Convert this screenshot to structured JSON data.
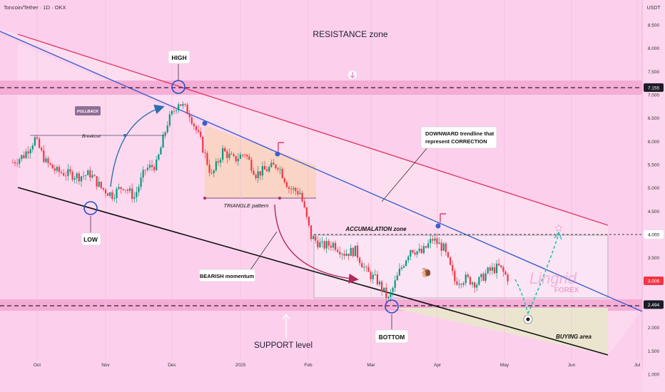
{
  "header": {
    "symbol_title": "Toncoin/Tether · 1D · OKX",
    "currency": "USDT"
  },
  "colors": {
    "background": "#fcd0ec",
    "candle_up": "#089981",
    "candle_down": "#f23645",
    "trend_blue": "#3a5fcd",
    "trend_red": "#e23a6a",
    "support_black": "#111111",
    "zone_band": "#f0a0cc",
    "accent_circle": "#2a4ec7",
    "label_box": "#ffffff",
    "buying_area": "#e8e2cf",
    "triangle_fill": "#f9d2bd",
    "projection": "#22c4b0"
  },
  "annotations": {
    "resistance_zone": "RESISTANCE zone",
    "high": "HIGH",
    "low": "LOW",
    "bottom": "BOTTOM",
    "pullback": "PULLBACK",
    "breakout": "Breakout",
    "triangle": "TRIANGLE pattern",
    "downward_1": "DOWNWARD trendline that",
    "downward_2": "represent CORRECTION",
    "accumulation": "ACCUMALATION zone",
    "bearish": "BEARISH momentum",
    "support": "SUPPORT level",
    "buying": "BUYING area",
    "watermark_1": "Lingrid",
    "watermark_2": "FOREX"
  },
  "chart_data": {
    "type": "candlestick",
    "title": "Toncoin/Tether · 1D · OKX",
    "xlabel": "",
    "ylabel": "",
    "y_unit": "USDT",
    "ylim": [
      0.9,
      8.8
    ],
    "x_ticks": [
      "Oct",
      "Nov",
      "Dec",
      "2025",
      "Feb",
      "Mar",
      "Apr",
      "May",
      "Jun",
      "Jul"
    ],
    "y_ticks": [
      "8.500",
      "8.000",
      "7.500",
      "7.000",
      "6.500",
      "6.000",
      "5.500",
      "5.000",
      "4.500",
      "4.000",
      "3.500",
      "3.000",
      "2.500",
      "2.000",
      "1.500",
      "1.000"
    ],
    "price_labels": [
      {
        "value": 7.155,
        "label": "7.155",
        "style": "dark"
      },
      {
        "value": 4.0,
        "label": "4.000",
        "style": "light"
      },
      {
        "value": 3.006,
        "label": "3.006",
        "style": "red"
      },
      {
        "value": 2.494,
        "label": "2.494",
        "style": "dark"
      }
    ],
    "close_path": [
      {
        "date": "2024-09-20",
        "close": 5.55
      },
      {
        "date": "2024-09-25",
        "close": 5.7
      },
      {
        "date": "2024-09-30",
        "close": 6.05
      },
      {
        "date": "2024-10-05",
        "close": 5.55
      },
      {
        "date": "2024-10-10",
        "close": 5.35
      },
      {
        "date": "2024-10-15",
        "close": 5.3
      },
      {
        "date": "2024-10-20",
        "close": 5.25
      },
      {
        "date": "2024-10-25",
        "close": 5.3
      },
      {
        "date": "2024-10-30",
        "close": 5.0
      },
      {
        "date": "2024-11-04",
        "close": 4.85
      },
      {
        "date": "2024-11-09",
        "close": 5.05
      },
      {
        "date": "2024-11-14",
        "close": 4.8
      },
      {
        "date": "2024-11-19",
        "close": 5.4
      },
      {
        "date": "2024-11-24",
        "close": 5.5
      },
      {
        "date": "2024-11-29",
        "close": 6.4
      },
      {
        "date": "2024-12-04",
        "close": 6.85
      },
      {
        "date": "2024-12-09",
        "close": 6.6
      },
      {
        "date": "2024-12-14",
        "close": 6.0
      },
      {
        "date": "2024-12-19",
        "close": 5.25
      },
      {
        "date": "2024-12-24",
        "close": 5.8
      },
      {
        "date": "2024-12-29",
        "close": 5.6
      },
      {
        "date": "2025-01-03",
        "close": 5.75
      },
      {
        "date": "2025-01-08",
        "close": 5.3
      },
      {
        "date": "2025-01-13",
        "close": 5.4
      },
      {
        "date": "2025-01-18",
        "close": 5.5
      },
      {
        "date": "2025-01-23",
        "close": 5.0
      },
      {
        "date": "2025-01-28",
        "close": 4.9
      },
      {
        "date": "2025-02-02",
        "close": 3.95
      },
      {
        "date": "2025-02-07",
        "close": 3.75
      },
      {
        "date": "2025-02-12",
        "close": 3.8
      },
      {
        "date": "2025-02-17",
        "close": 3.6
      },
      {
        "date": "2025-02-22",
        "close": 3.65
      },
      {
        "date": "2025-02-27",
        "close": 3.2
      },
      {
        "date": "2025-03-04",
        "close": 3.0
      },
      {
        "date": "2025-03-09",
        "close": 2.6
      },
      {
        "date": "2025-03-14",
        "close": 3.2
      },
      {
        "date": "2025-03-19",
        "close": 3.7
      },
      {
        "date": "2025-03-24",
        "close": 3.6
      },
      {
        "date": "2025-03-29",
        "close": 3.9
      },
      {
        "date": "2025-04-03",
        "close": 3.7
      },
      {
        "date": "2025-04-08",
        "close": 3.0
      },
      {
        "date": "2025-04-13",
        "close": 3.05
      },
      {
        "date": "2025-04-18",
        "close": 2.95
      },
      {
        "date": "2025-04-23",
        "close": 3.2
      },
      {
        "date": "2025-04-28",
        "close": 3.3
      },
      {
        "date": "2025-05-03",
        "close": 3.01
      }
    ]
  }
}
